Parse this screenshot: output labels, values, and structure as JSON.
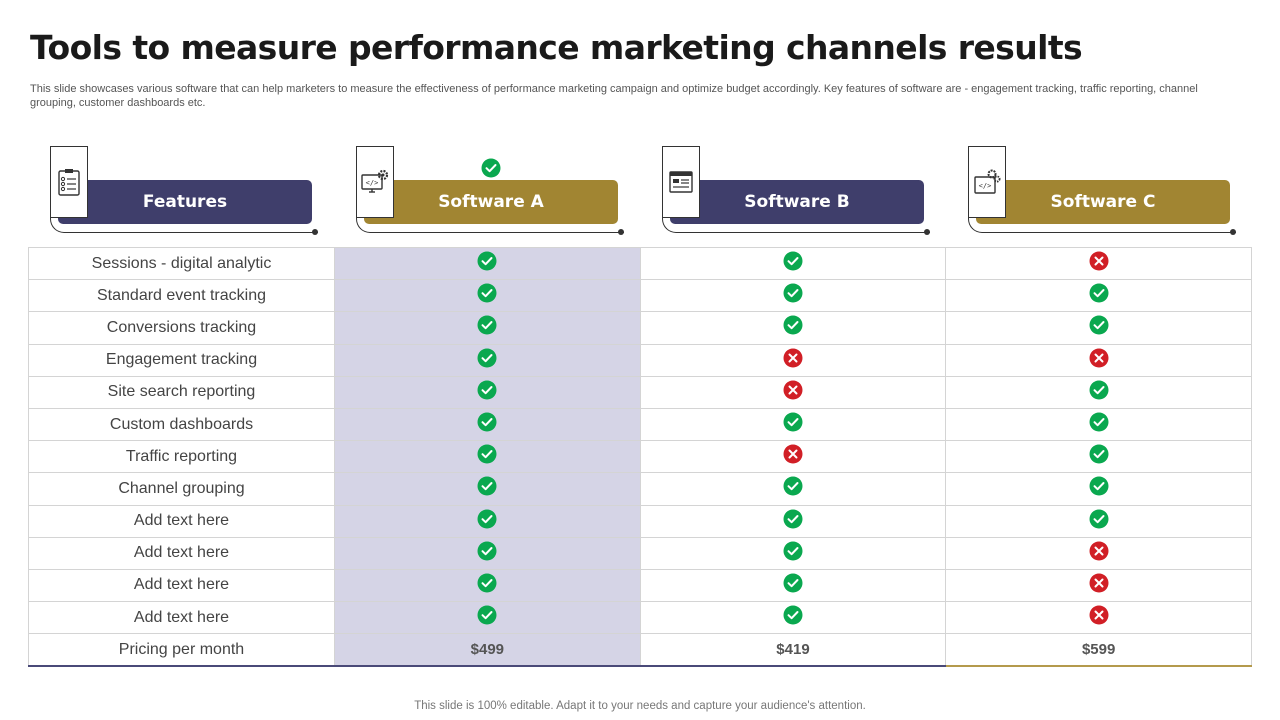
{
  "title": "Tools to measure performance marketing channels results",
  "subtitle": "This slide showcases various software that can help marketers to measure the effectiveness of performance marketing campaign and optimize budget accordingly. Key features of software are - engagement tracking, traffic reporting, channel grouping, customer dashboards etc.",
  "headers": [
    {
      "label": "Features",
      "icon": "checklist-clipboard-icon",
      "color": "#3f3e6b"
    },
    {
      "label": "Software A",
      "icon": "code-gear-monitor-icon",
      "color": "#a18532"
    },
    {
      "label": "Software B",
      "icon": "dashboard-window-icon",
      "color": "#3f3e6b"
    },
    {
      "label": "Software C",
      "icon": "code-gears-window-icon",
      "color": "#a18532"
    }
  ],
  "recommended_badge": "check-circle-icon",
  "rows": [
    {
      "feature": "Sessions - digital analytic",
      "values": [
        true,
        true,
        false
      ]
    },
    {
      "feature": "Standard event tracking",
      "values": [
        true,
        true,
        true
      ]
    },
    {
      "feature": "Conversions tracking",
      "values": [
        true,
        true,
        true
      ]
    },
    {
      "feature": "Engagement tracking",
      "values": [
        true,
        false,
        false
      ]
    },
    {
      "feature": "Site search reporting",
      "values": [
        true,
        false,
        true
      ]
    },
    {
      "feature": "Custom dashboards",
      "values": [
        true,
        true,
        true
      ]
    },
    {
      "feature": "Traffic reporting",
      "values": [
        true,
        false,
        true
      ]
    },
    {
      "feature": "Channel grouping",
      "values": [
        true,
        true,
        true
      ]
    },
    {
      "feature": "Add text here",
      "values": [
        true,
        true,
        true
      ]
    },
    {
      "feature": "Add text here",
      "values": [
        true,
        true,
        false
      ]
    },
    {
      "feature": "Add text here",
      "values": [
        true,
        true,
        false
      ]
    },
    {
      "feature": "Add text here",
      "values": [
        true,
        true,
        false
      ]
    }
  ],
  "pricing": {
    "label": "Pricing per month",
    "values": [
      "$499",
      "$419",
      "$599"
    ]
  },
  "colors": {
    "check": "#0aa84f",
    "cross": "#d11f26",
    "highlight": "#d5d4e6"
  },
  "footer": "This slide is 100% editable. Adapt it to your needs and capture your audience's attention."
}
